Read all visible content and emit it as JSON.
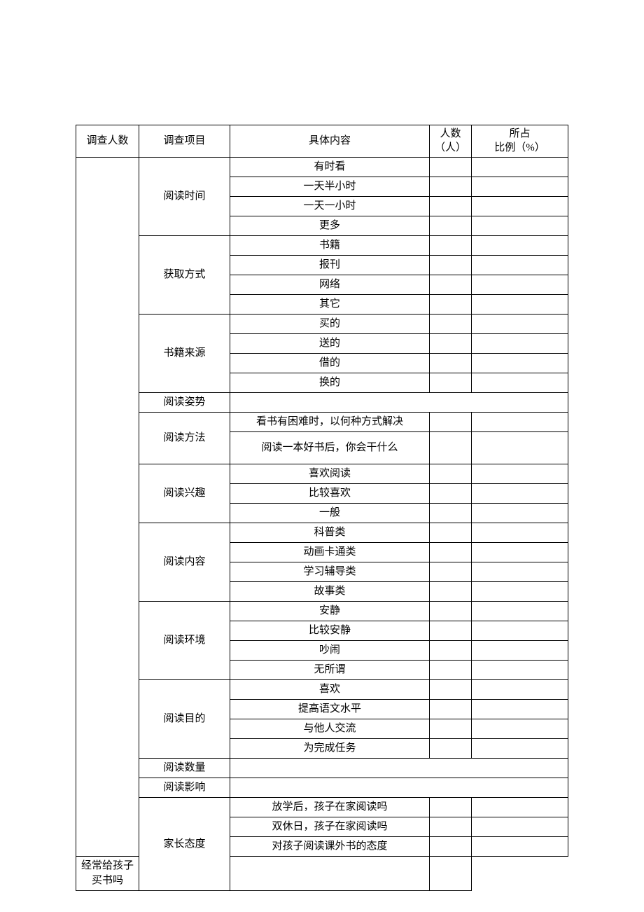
{
  "table": {
    "border_color": "#000000",
    "background_color": "#ffffff",
    "text_color": "#000000",
    "font_size": 15,
    "headers": {
      "col1": "调查人数",
      "col2": "调查项目",
      "col3": "具体内容",
      "col4_line1": "人数",
      "col4_line2": "（人）",
      "col5_line1": "所占",
      "col5_line2": "比例（%）"
    },
    "sections": [
      {
        "category": "阅读时间",
        "items": [
          "有时看",
          "一天半小时",
          "一天一小时",
          "更多"
        ]
      },
      {
        "category": "获取方式",
        "items": [
          "书籍",
          "报刊",
          "网络",
          "其它"
        ]
      },
      {
        "category": "书籍来源",
        "items": [
          "买的",
          "送的",
          "借的",
          "换的"
        ]
      },
      {
        "category": "阅读姿势",
        "items": []
      },
      {
        "category": "阅读方法",
        "items": [
          "看书有困难时，以何种方式解决",
          "阅读一本好书后，你会干什么"
        ]
      },
      {
        "category": "阅读兴趣",
        "items": [
          "喜欢阅读",
          "比较喜欢",
          "一般"
        ]
      },
      {
        "category": "阅读内容",
        "items": [
          "科普类",
          "动画卡通类",
          "学习辅导类",
          "故事类"
        ]
      },
      {
        "category": "阅读环境",
        "items": [
          "安静",
          "比较安静",
          "吵闹",
          "无所谓"
        ]
      },
      {
        "category": "阅读目的",
        "items": [
          "喜欢",
          "提高语文水平",
          "与他人交流",
          "为完成任务"
        ]
      },
      {
        "category": "阅读数量",
        "items": []
      },
      {
        "category": "阅读影响",
        "items": []
      },
      {
        "category": "家长态度",
        "items": [
          "放学后，孩子在家阅读吗",
          "双休日，孩子在家阅读吗",
          "对孩子阅读课外书的态度",
          "经常给孩子买书吗"
        ]
      }
    ]
  }
}
